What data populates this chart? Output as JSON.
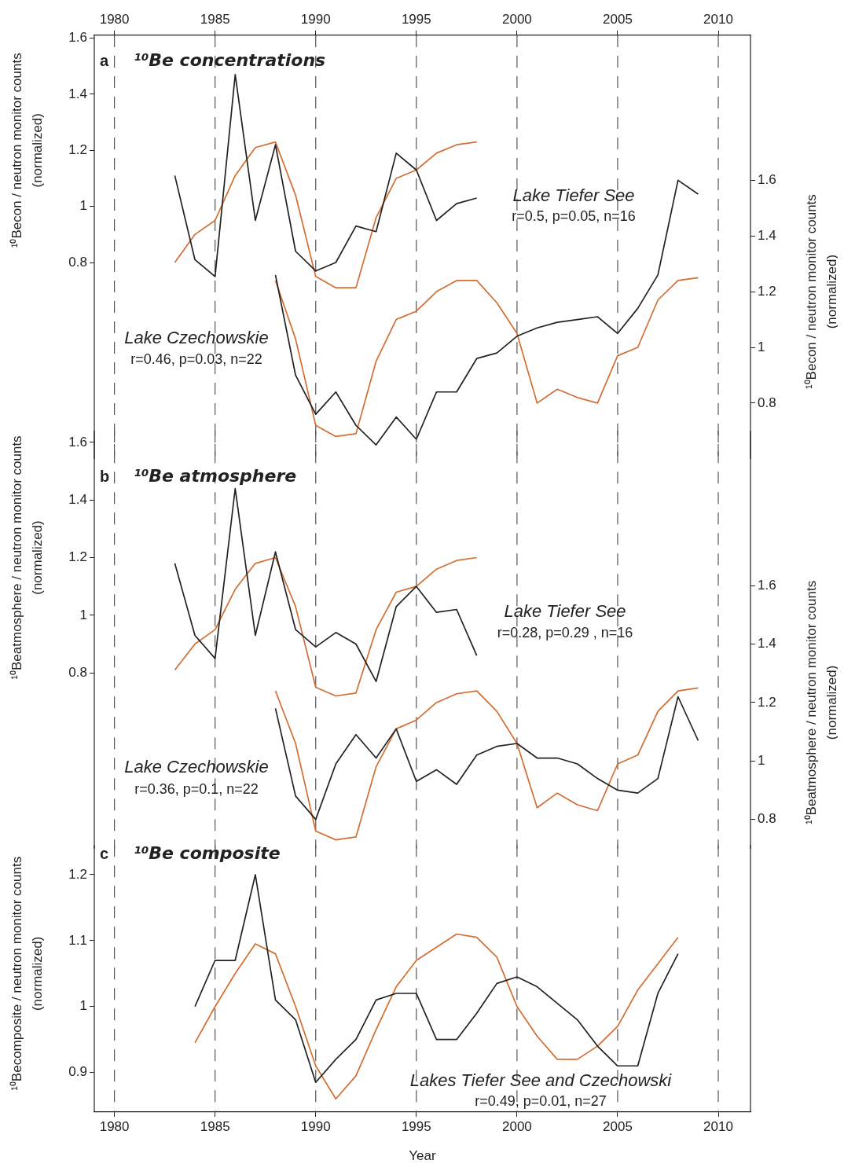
{
  "chart_data": [
    {
      "type": "line",
      "title": "¹⁰Be concentrations",
      "ylabel": "¹⁰Becon / neutron monitor counts (normalized)",
      "y2label": "¹⁰Becon / neutron monitor counts (normalized)",
      "xlim": [
        1979,
        2011.6
      ],
      "xticks": [
        1980,
        1985,
        1990,
        1995,
        2000,
        2005,
        2010
      ],
      "x2lim": [
        1979,
        2011.6
      ],
      "x2ticks": [
        1980,
        1985,
        1990,
        1995,
        2000,
        2005,
        2010
      ],
      "ylim": [
        0.1,
        1.61
      ],
      "yticks": [
        0.8,
        1,
        1.2,
        1.4,
        1.6
      ],
      "y2lim": [
        0.6,
        2.12
      ],
      "y2ticks": [
        0.8,
        1,
        1.2,
        1.4,
        1.6
      ],
      "grid": "x",
      "tick_labels": "y",
      "annotations": [
        "a",
        "Lake Tiefer See",
        "r=0.5, p=0.05, n=16",
        "Lake Czechowskie",
        "r=0.46, p=0.03, n=22"
      ],
      "series": [
        {
          "color": "#222222",
          "x": [
            1983,
            1984,
            1985,
            1986,
            1987,
            1988,
            1989,
            1990,
            1991,
            1992,
            1993,
            1994,
            1995,
            1996,
            1997,
            1998
          ],
          "values": [
            1.11,
            0.81,
            0.75,
            1.47,
            0.95,
            1.22,
            0.84,
            0.77,
            0.8,
            0.93,
            0.91,
            1.19,
            1.13,
            0.95,
            1.01,
            1.03
          ]
        },
        {
          "color": "#d26e32",
          "x": [
            1983,
            1984,
            1985,
            1986,
            1987,
            1988,
            1989,
            1990,
            1991,
            1992,
            1993,
            1994,
            1995,
            1996,
            1997,
            1998
          ],
          "values": [
            0.8,
            0.9,
            0.95,
            1.11,
            1.21,
            1.23,
            1.04,
            0.75,
            0.71,
            0.71,
            0.96,
            1.1,
            1.13,
            1.19,
            1.22,
            1.23
          ]
        },
        {
          "color": "#222222",
          "axis": "y2",
          "x": [
            1988,
            1989,
            1990,
            1991,
            1992,
            1993,
            1994,
            1995,
            1996,
            1997,
            1998,
            1999,
            2000,
            2001,
            2002,
            2003,
            2004,
            2005,
            2006,
            2007,
            2008,
            2009
          ],
          "values": [
            1.26,
            0.9,
            0.76,
            0.84,
            0.72,
            0.65,
            0.75,
            0.67,
            0.84,
            0.84,
            0.96,
            0.98,
            1.04,
            1.07,
            1.09,
            1.1,
            1.11,
            1.05,
            1.14,
            1.26,
            1.6,
            1.55
          ]
        },
        {
          "color": "#d26e32",
          "axis": "y2",
          "x": [
            1988,
            1989,
            1990,
            1991,
            1992,
            1993,
            1994,
            1995,
            1996,
            1997,
            1998,
            1999,
            2000,
            2001,
            2002,
            2003,
            2004,
            2005,
            2006,
            2007,
            2008,
            2009
          ],
          "values": [
            1.24,
            1.03,
            0.72,
            0.68,
            0.69,
            0.95,
            1.1,
            1.13,
            1.2,
            1.24,
            1.24,
            1.16,
            1.05,
            0.8,
            0.85,
            0.82,
            0.8,
            0.97,
            1.0,
            1.17,
            1.24,
            1.25
          ]
        }
      ]
    },
    {
      "type": "line",
      "title": "¹⁰Be atmosphere",
      "ylabel": "¹⁰Beatmosphere / neutron monitor counts (normalized)",
      "y2label": "¹⁰Beatmosphere / neutron monitor counts (normalized)",
      "xlim": [
        1979,
        2011.6
      ],
      "xticks": [
        1980,
        1985,
        1990,
        1995,
        2000,
        2005,
        2010
      ],
      "ylim": [
        0.19,
        1.64
      ],
      "yticks": [
        0.8,
        1,
        1.2,
        1.4,
        1.6
      ],
      "y2lim": [
        0.7,
        2.13
      ],
      "y2ticks": [
        0.8,
        1,
        1.2,
        1.4,
        1.6
      ],
      "grid": "x",
      "tick_labels": "y",
      "annotations": [
        "b",
        "Lake Tiefer See",
        "r=0.28, p=0.29 , n=16",
        "Lake Czechowskie",
        "r=0.36, p=0.1, n=22"
      ],
      "series": [
        {
          "color": "#222222",
          "x": [
            1983,
            1984,
            1985,
            1986,
            1987,
            1988,
            1989,
            1990,
            1991,
            1992,
            1993,
            1994,
            1995,
            1996,
            1997,
            1998
          ],
          "values": [
            1.18,
            0.93,
            0.85,
            1.44,
            0.93,
            1.22,
            0.95,
            0.89,
            0.94,
            0.9,
            0.77,
            1.03,
            1.1,
            1.01,
            1.02,
            0.86
          ]
        },
        {
          "color": "#d26e32",
          "x": [
            1983,
            1984,
            1985,
            1986,
            1987,
            1988,
            1989,
            1990,
            1991,
            1992,
            1993,
            1994,
            1995,
            1996,
            1997,
            1998
          ],
          "values": [
            0.81,
            0.9,
            0.95,
            1.09,
            1.18,
            1.2,
            1.03,
            0.75,
            0.72,
            0.73,
            0.95,
            1.08,
            1.1,
            1.16,
            1.19,
            1.2
          ]
        },
        {
          "color": "#222222",
          "axis": "y2",
          "x": [
            1988,
            1989,
            1990,
            1991,
            1992,
            1993,
            1994,
            1995,
            1996,
            1997,
            1998,
            1999,
            2000,
            2001,
            2002,
            2003,
            2004,
            2005,
            2006,
            2007,
            2008,
            2009
          ],
          "values": [
            1.18,
            0.88,
            0.8,
            0.99,
            1.09,
            1.01,
            1.11,
            0.93,
            0.97,
            0.92,
            1.02,
            1.05,
            1.06,
            1.01,
            1.01,
            0.99,
            0.94,
            0.9,
            0.89,
            0.94,
            1.22,
            1.07
          ]
        },
        {
          "color": "#d26e32",
          "axis": "y2",
          "x": [
            1988,
            1989,
            1990,
            1991,
            1992,
            1993,
            1994,
            1995,
            1996,
            1997,
            1998,
            1999,
            2000,
            2001,
            2002,
            2003,
            2004,
            2005,
            2006,
            2007,
            2008,
            2009
          ],
          "values": [
            1.24,
            1.06,
            0.76,
            0.73,
            0.74,
            0.98,
            1.11,
            1.14,
            1.2,
            1.23,
            1.24,
            1.17,
            1.06,
            0.84,
            0.89,
            0.85,
            0.83,
            0.99,
            1.02,
            1.17,
            1.24,
            1.25
          ]
        }
      ]
    },
    {
      "type": "line",
      "title": "¹⁰Be composite",
      "ylabel": "¹⁰Becomposite / neutron monitor counts (normalized)",
      "xlabel": "Year",
      "xlim": [
        1979,
        2011.6
      ],
      "xticks": [
        1980,
        1985,
        1990,
        1995,
        2000,
        2005,
        2010
      ],
      "ylim": [
        0.84,
        1.245
      ],
      "yticks": [
        0.9,
        1,
        1.1,
        1.2
      ],
      "grid": "x",
      "annotations": [
        "c",
        "Lakes Tiefer See and Czechowski",
        "r=0.49, p=0.01, n=27"
      ],
      "series": [
        {
          "color": "#222222",
          "x": [
            1984,
            1985,
            1986,
            1987,
            1988,
            1989,
            1990,
            1991,
            1992,
            1993,
            1994,
            1995,
            1996,
            1997,
            1998,
            1999,
            2000,
            2001,
            2002,
            2003,
            2004,
            2005,
            2006,
            2007,
            2008
          ],
          "values": [
            1.0,
            1.07,
            1.07,
            1.2,
            1.01,
            0.98,
            0.885,
            0.92,
            0.95,
            1.01,
            1.02,
            1.02,
            0.95,
            0.95,
            0.99,
            1.035,
            1.045,
            1.03,
            1.005,
            0.98,
            0.94,
            0.91,
            0.91,
            1.02,
            1.08
          ]
        },
        {
          "color": "#d26e32",
          "x": [
            1984,
            1985,
            1986,
            1987,
            1988,
            1989,
            1990,
            1991,
            1992,
            1993,
            1994,
            1995,
            1996,
            1997,
            1998,
            1999,
            2000,
            2001,
            2002,
            2003,
            2004,
            2005,
            2006,
            2007,
            2008
          ],
          "values": [
            0.945,
            1.0,
            1.05,
            1.095,
            1.08,
            1.0,
            0.91,
            0.86,
            0.895,
            0.965,
            1.03,
            1.07,
            1.09,
            1.11,
            1.105,
            1.075,
            1.0,
            0.955,
            0.92,
            0.92,
            0.94,
            0.97,
            1.025,
            1.065,
            1.105
          ]
        }
      ]
    }
  ]
}
